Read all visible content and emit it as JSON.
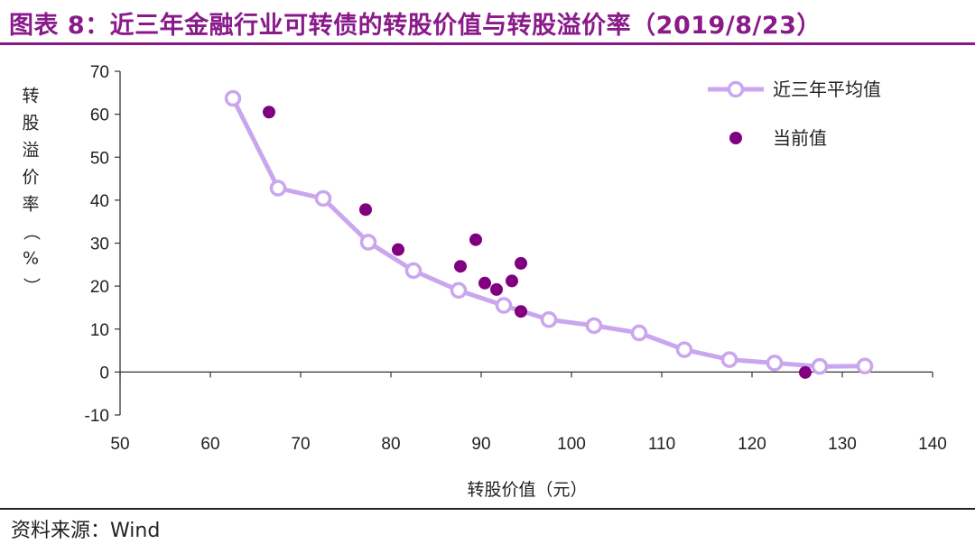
{
  "title": "图表 8：近三年金融行业可转债的转股价值与转股溢价率（2019/8/23）",
  "source": "资料来源：Wind",
  "colors": {
    "title": "#8a1a8a",
    "avg_line": "#c9a6ee",
    "current": "#800080"
  },
  "chart_data": {
    "type": "scatter",
    "xlabel": "转股价值（元）",
    "ylabel": "转股溢价率（%）",
    "xlim": [
      50,
      140
    ],
    "ylim": [
      -10,
      70
    ],
    "xticks": [
      50,
      60,
      70,
      80,
      90,
      100,
      110,
      120,
      130,
      140
    ],
    "yticks": [
      -10,
      0,
      10,
      20,
      30,
      40,
      50,
      60,
      70
    ],
    "legend_position": "top-right",
    "series": [
      {
        "name": "近三年平均值",
        "style": "line-marker",
        "points": [
          [
            62.5,
            63.7
          ],
          [
            67.5,
            42.8
          ],
          [
            72.5,
            40.4
          ],
          [
            77.5,
            30.2
          ],
          [
            82.5,
            23.6
          ],
          [
            87.5,
            19.0
          ],
          [
            92.5,
            15.5
          ],
          [
            97.5,
            12.2
          ],
          [
            102.5,
            10.8
          ],
          [
            107.5,
            9.1
          ],
          [
            112.5,
            5.2
          ],
          [
            117.5,
            2.9
          ],
          [
            122.5,
            2.1
          ],
          [
            127.5,
            1.3
          ],
          [
            132.5,
            1.4
          ]
        ]
      },
      {
        "name": "当前值",
        "style": "dots",
        "points": [
          [
            66.5,
            60.5
          ],
          [
            77.2,
            37.8
          ],
          [
            80.8,
            28.5
          ],
          [
            87.7,
            24.6
          ],
          [
            89.4,
            30.8
          ],
          [
            90.4,
            20.7
          ],
          [
            91.7,
            19.2
          ],
          [
            93.4,
            21.2
          ],
          [
            94.4,
            25.3
          ],
          [
            94.4,
            14.1
          ],
          [
            125.9,
            -0.1
          ]
        ]
      }
    ]
  }
}
